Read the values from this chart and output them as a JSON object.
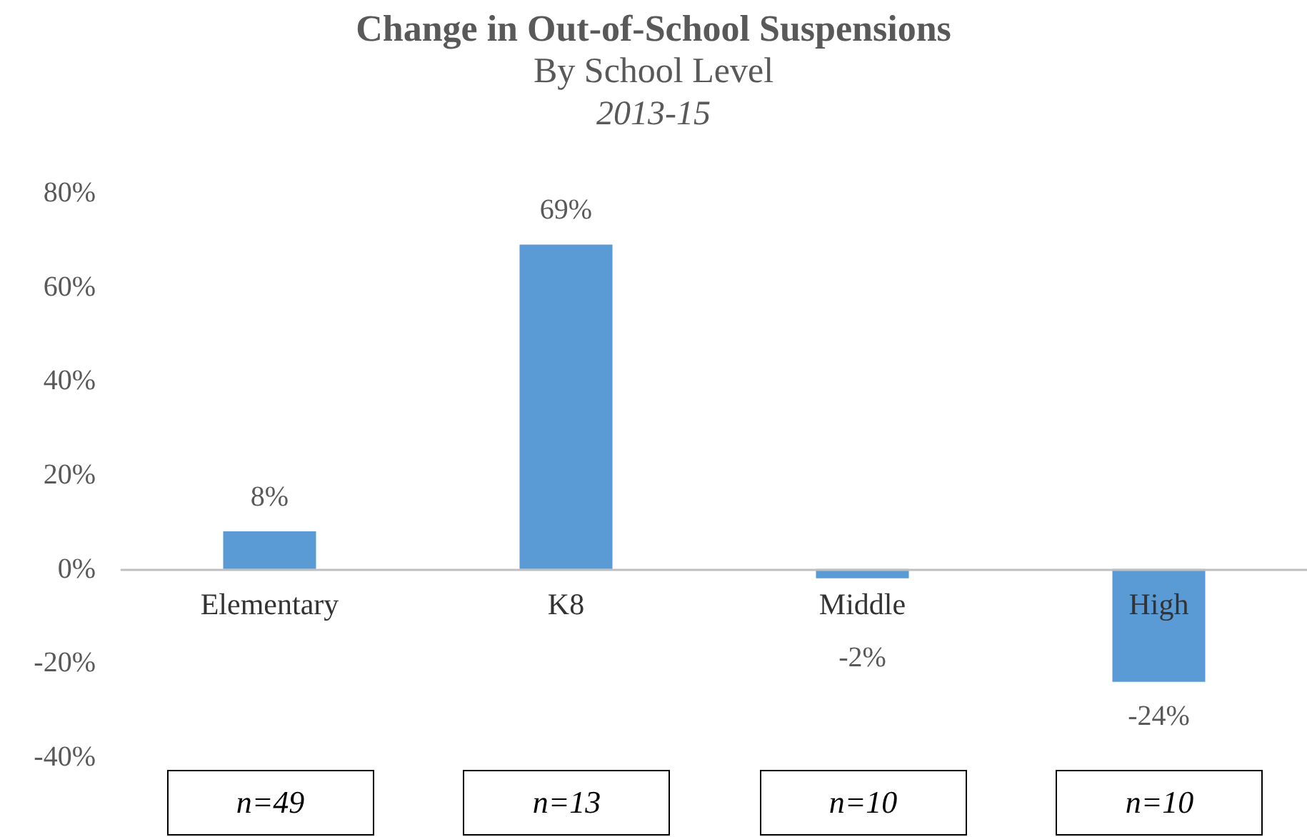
{
  "chart_data": {
    "type": "bar",
    "title": "Change in Out-of-School Suspensions",
    "subtitle": "By School Level\n2013-15",
    "categories": [
      "Elementary",
      "K8",
      "Middle",
      "High"
    ],
    "values": [
      8,
      69,
      -2,
      -24
    ],
    "color": "#5b9bd5",
    "value_labels": [
      "8%",
      "69%",
      "-2%",
      "-24%"
    ],
    "ylim": [
      -40,
      80
    ],
    "yticks": [
      {
        "value": -40,
        "label": "-40%"
      },
      {
        "value": -20,
        "label": "-20%"
      },
      {
        "value": 0,
        "label": "0%"
      },
      {
        "value": 20,
        "label": "20%"
      },
      {
        "value": 40,
        "label": "40%"
      },
      {
        "value": 60,
        "label": "60%"
      },
      {
        "value": 80,
        "label": "80%"
      }
    ],
    "grid": false,
    "annotations": [
      "n=49",
      "n=13",
      "n=10",
      "n=10"
    ]
  }
}
